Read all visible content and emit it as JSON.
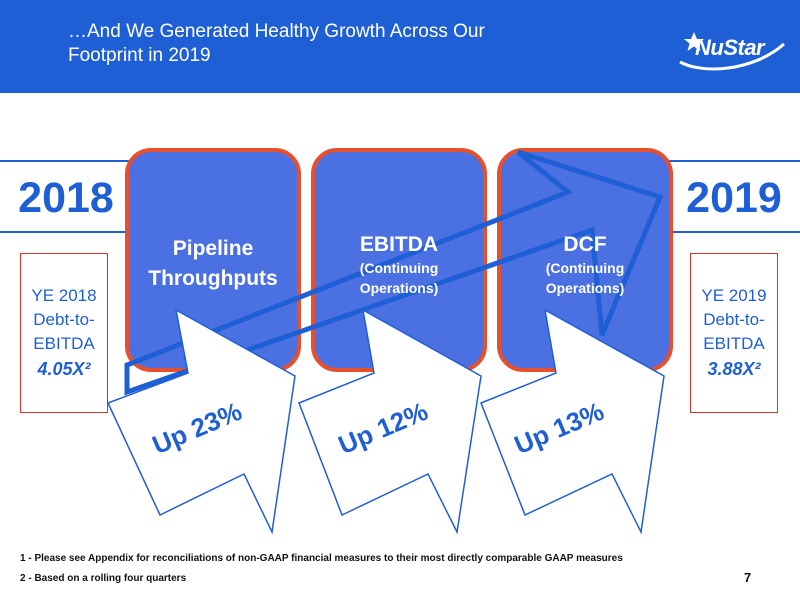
{
  "header": {
    "title_line1": "…And We Generated Healthy Growth Across Our",
    "title_line2": "Footprint in 2019",
    "logo_text": "NuStar",
    "background_color": "#1f5fd6"
  },
  "years": {
    "start": "2018",
    "end": "2019"
  },
  "debt": {
    "start": {
      "line1": "YE 2018",
      "line2": "Debt-to-",
      "line3": "EBITDA",
      "ratio": "4.05X²"
    },
    "end": {
      "line1": "YE 2019",
      "line2": "Debt-to-",
      "line3": "EBITDA",
      "ratio": "3.88X²"
    }
  },
  "metrics": [
    {
      "title_line1": "Pipeline",
      "title_line2": "Throughputs",
      "change": "Up 23%"
    },
    {
      "title": "EBITDA",
      "sub_line1": "(Continuing",
      "sub_line2": "Operations)",
      "change": "Up 12%"
    },
    {
      "title": "DCF",
      "sub_line1": "(Continuing",
      "sub_line2": "Operations)",
      "change": "Up 13%"
    }
  ],
  "colors": {
    "blue": "#1f5fd6",
    "card_fill": "#4b70e2",
    "card_border": "#e8502b",
    "debt_border": "#d9322b"
  },
  "footnotes": [
    "1 - Please see Appendix for reconciliations of non-GAAP financial measures to their most directly comparable GAAP measures",
    "2 - Based on a rolling four quarters"
  ],
  "page_number": "7"
}
